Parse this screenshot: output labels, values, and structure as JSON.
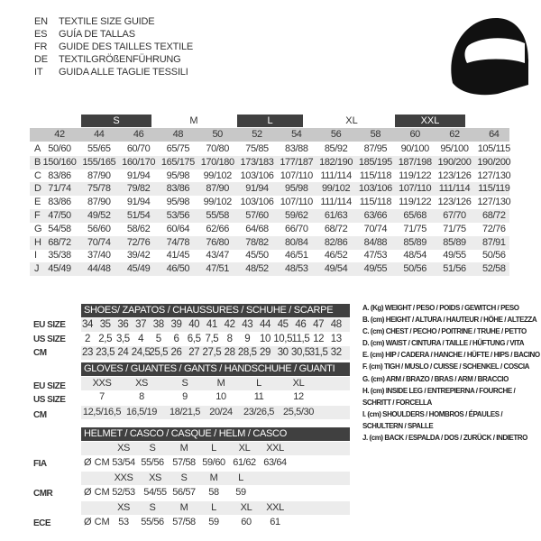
{
  "titles": [
    {
      "code": "EN",
      "text": "TEXTILE SIZE GUIDE"
    },
    {
      "code": "ES",
      "text": "GUÍA DE TALLAS"
    },
    {
      "code": "FR",
      "text": "GUIDE DES TAILLES TEXTILE"
    },
    {
      "code": "DE",
      "text": "TEXTILGRÖßENFÜHRUNG"
    },
    {
      "code": "IT",
      "text": "GUIDA ALLE TAGLIE TESSILI"
    }
  ],
  "icon": "helmet-icon",
  "textile": {
    "size_groups": [
      "S",
      "M",
      "L",
      "XL",
      "XXL"
    ],
    "columns": [
      "42",
      "44",
      "46",
      "48",
      "50",
      "52",
      "54",
      "56",
      "58",
      "60",
      "62",
      "64"
    ],
    "rows": [
      {
        "label": "A",
        "values": [
          "50/60",
          "55/65",
          "60/70",
          "65/75",
          "70/80",
          "75/85",
          "83/88",
          "85/92",
          "87/95",
          "90/100",
          "95/100",
          "105/115"
        ]
      },
      {
        "label": "B",
        "values": [
          "150/160",
          "155/165",
          "160/170",
          "165/175",
          "170/180",
          "173/183",
          "177/187",
          "182/190",
          "185/195",
          "187/198",
          "190/200",
          "190/200"
        ]
      },
      {
        "label": "C",
        "values": [
          "83/86",
          "87/90",
          "91/94",
          "95/98",
          "99/102",
          "103/106",
          "107/110",
          "111/114",
          "115/118",
          "119/122",
          "123/126",
          "127/130"
        ]
      },
      {
        "label": "D",
        "values": [
          "71/74",
          "75/78",
          "79/82",
          "83/86",
          "87/90",
          "91/94",
          "95/98",
          "99/102",
          "103/106",
          "107/110",
          "111/114",
          "115/119"
        ]
      },
      {
        "label": "E",
        "values": [
          "83/86",
          "87/90",
          "91/94",
          "95/98",
          "99/102",
          "103/106",
          "107/110",
          "111/114",
          "115/118",
          "119/122",
          "123/126",
          "127/130"
        ]
      },
      {
        "label": "F",
        "values": [
          "47/50",
          "49/52",
          "51/54",
          "53/56",
          "55/58",
          "57/60",
          "59/62",
          "61/63",
          "63/66",
          "65/68",
          "67/70",
          "68/72"
        ]
      },
      {
        "label": "G",
        "values": [
          "54/58",
          "56/60",
          "58/62",
          "60/64",
          "62/66",
          "64/68",
          "66/70",
          "68/72",
          "70/74",
          "71/75",
          "71/75",
          "72/76"
        ]
      },
      {
        "label": "H",
        "values": [
          "68/72",
          "70/74",
          "72/76",
          "74/78",
          "76/80",
          "78/82",
          "80/84",
          "82/86",
          "84/88",
          "85/89",
          "85/89",
          "87/91"
        ]
      },
      {
        "label": "I",
        "values": [
          "35/38",
          "37/40",
          "39/42",
          "41/45",
          "43/47",
          "45/50",
          "46/51",
          "46/52",
          "47/53",
          "48/54",
          "49/55",
          "50/56"
        ]
      },
      {
        "label": "J",
        "values": [
          "45/49",
          "44/48",
          "45/49",
          "46/50",
          "47/51",
          "48/52",
          "48/53",
          "49/54",
          "49/55",
          "50/56",
          "51/56",
          "52/58"
        ]
      }
    ]
  },
  "shoes": {
    "title": "SHOES/ ZAPATOS / CHAUSSURES / SCHUHE / SCARPE",
    "rows": [
      {
        "label": "EU SIZE",
        "values": [
          "34",
          "35",
          "36",
          "37",
          "38",
          "39",
          "40",
          "41",
          "42",
          "43",
          "44",
          "45",
          "46",
          "47",
          "48"
        ]
      },
      {
        "label": "US SIZE",
        "values": [
          "2",
          "2,5",
          "3,5",
          "4",
          "5",
          "6",
          "6,5",
          "7,5",
          "8",
          "9",
          "10",
          "10,5",
          "11,5",
          "12",
          "13"
        ]
      },
      {
        "label": "CM",
        "values": [
          "23",
          "23,5",
          "24",
          "24,5",
          "25,5",
          "26",
          "27",
          "27,5",
          "28",
          "28,5",
          "29",
          "30",
          "30,5",
          "31,5",
          "32"
        ]
      }
    ]
  },
  "gloves": {
    "title": "GLOVES / GUANTES / GANTS / HANDSCHUHE / GUANTI",
    "rows": [
      {
        "label": "EU SIZE",
        "values": [
          "XXS",
          "XS",
          "S",
          "M",
          "L",
          "XL"
        ]
      },
      {
        "label": "US SIZE",
        "values": [
          "7",
          "8",
          "9",
          "10",
          "11",
          "12"
        ]
      },
      {
        "label": "CM",
        "values": [
          "12,5/16,5",
          "16,5/19",
          "18/21,5",
          "20/24",
          "23/26,5",
          "25,5/30"
        ]
      }
    ]
  },
  "helmet": {
    "title": "HELMET / CASCO / CASQUE / HELM / CASCO",
    "unit": "Ø CM",
    "groups": [
      {
        "label": "FIA",
        "sizes": [
          "XS",
          "S",
          "M",
          "L",
          "XL",
          "XXL"
        ],
        "values": [
          "53/54",
          "55/56",
          "57/58",
          "59/60",
          "61/62",
          "63/64"
        ]
      },
      {
        "label": "CMR",
        "sizes": [
          "XXS",
          "XS",
          "S",
          "M",
          "L"
        ],
        "values": [
          "52/53",
          "54/55",
          "56/57",
          "58",
          "59"
        ]
      },
      {
        "label": "ECE",
        "sizes": [
          "XS",
          "S",
          "M",
          "L",
          "XL",
          "XXL"
        ],
        "values": [
          "53",
          "55/56",
          "57/58",
          "59",
          "60",
          "61"
        ]
      }
    ]
  },
  "legend": [
    "A. (Kg) WEIGHT / PESO / POIDS / GEWITCH / PESO",
    "B. (cm) HEIGHT / ALTURA / HAUTEUR / HÖHE / ALTEZZA",
    "C. (cm) CHEST / PECHO / POITRINE / TRUHE / PETTO",
    "D. (cm) WAIST / CINTURA / TAILLE / HÜFTUNG / VITA",
    "E. (cm) HIP / CADERA / HANCHE / HÜFTE / HIPS /  BACINO",
    "F.  (cm) TIGH / MUSLO / CUISSE / SCHENKEL / COSCIA",
    "G. (cm) ARM  / BRAZO / BRAS / ARM / BRACCIO",
    "H. (cm) INSIDE LEG / ENTREPIERNA / FOURCHE /",
    "SCHRITT / FORCELLA",
    "I.  (cm) SHOULDERS / HOMBROS / ÉPAULES /",
    "SCHULTERN / SPALLE",
    "J. (cm) BACK / ESPALDA / DOS / ZURÜCK / INDIETRO"
  ]
}
